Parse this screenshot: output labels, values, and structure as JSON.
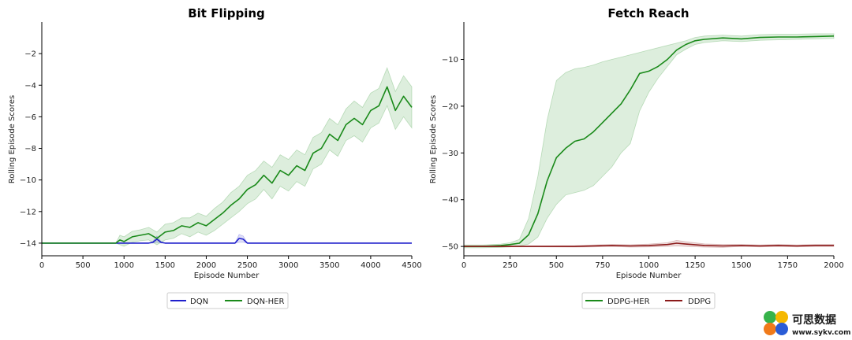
{
  "chart_data": [
    {
      "type": "line",
      "title": "Bit Flipping",
      "xlabel": "Episode Number",
      "ylabel": "Rolling Episode Scores",
      "xlim": [
        0,
        4500
      ],
      "ylim": [
        -14.8,
        0.0
      ],
      "xticks": [
        0,
        500,
        1000,
        1500,
        2000,
        2500,
        3000,
        3500,
        4000,
        4500
      ],
      "yticks": [
        -14,
        -12,
        -10,
        -8,
        -6,
        -4,
        -2
      ],
      "grid": false,
      "legend": "bottom-center",
      "series": [
        {
          "name": "DQN",
          "color": "#1f1fcc",
          "x": [
            0,
            900,
            1000,
            1300,
            1350,
            1400,
            1450,
            1500,
            2350,
            2400,
            2450,
            2500,
            4500
          ],
          "y": [
            -14,
            -14,
            -14,
            -14,
            -13.95,
            -13.75,
            -13.95,
            -14,
            -14,
            -13.7,
            -13.75,
            -14,
            -14
          ],
          "band": [
            0,
            0,
            0,
            0,
            0.05,
            0.2,
            0.05,
            0,
            0,
            0.25,
            0.2,
            0,
            0
          ]
        },
        {
          "name": "DQN-HER",
          "color": "#1a8a1a",
          "x": [
            0,
            900,
            950,
            1000,
            1100,
            1200,
            1300,
            1400,
            1500,
            1600,
            1700,
            1800,
            1900,
            2000,
            2100,
            2200,
            2300,
            2400,
            2500,
            2600,
            2700,
            2800,
            2900,
            3000,
            3100,
            3200,
            3300,
            3400,
            3500,
            3600,
            3700,
            3800,
            3900,
            4000,
            4100,
            4200,
            4300,
            4400,
            4500
          ],
          "y": [
            -14,
            -14,
            -13.8,
            -13.9,
            -13.6,
            -13.5,
            -13.4,
            -13.7,
            -13.3,
            -13.2,
            -12.9,
            -13.0,
            -12.7,
            -12.9,
            -12.5,
            -12.1,
            -11.6,
            -11.2,
            -10.6,
            -10.3,
            -9.7,
            -10.2,
            -9.4,
            -9.7,
            -9.1,
            -9.4,
            -8.3,
            -8.0,
            -7.1,
            -7.5,
            -6.5,
            -6.1,
            -6.5,
            -5.6,
            -5.3,
            -4.1,
            -5.6,
            -4.7,
            -5.4
          ],
          "band": [
            0,
            0,
            0.3,
            0.3,
            0.35,
            0.35,
            0.4,
            0.4,
            0.5,
            0.5,
            0.5,
            0.6,
            0.6,
            0.6,
            0.7,
            0.7,
            0.8,
            0.8,
            0.9,
            0.9,
            0.9,
            1.0,
            1.0,
            1.0,
            1.0,
            1.0,
            1.0,
            1.0,
            1.0,
            1.0,
            1.0,
            1.1,
            1.1,
            1.1,
            1.1,
            1.2,
            1.2,
            1.3,
            1.3
          ]
        }
      ]
    },
    {
      "type": "line",
      "title": "Fetch Reach",
      "xlabel": "Episode Number",
      "ylabel": "Rolling Episode Scores",
      "xlim": [
        0,
        2000
      ],
      "ylim": [
        -52,
        -2
      ],
      "xticks": [
        0,
        250,
        500,
        750,
        1000,
        1250,
        1500,
        1750,
        2000
      ],
      "yticks": [
        -50,
        -40,
        -30,
        -20,
        -10
      ],
      "grid": false,
      "legend": "bottom-center",
      "series": [
        {
          "name": "DDPG-HER",
          "color": "#1a8a1a",
          "x": [
            0,
            100,
            200,
            250,
            300,
            350,
            400,
            450,
            500,
            550,
            600,
            650,
            700,
            750,
            800,
            850,
            900,
            950,
            1000,
            1050,
            1100,
            1150,
            1200,
            1250,
            1300,
            1400,
            1500,
            1600,
            1700,
            1800,
            1900,
            2000
          ],
          "y": [
            -50,
            -50,
            -49.8,
            -49.6,
            -49.3,
            -47.5,
            -43,
            -36,
            -31,
            -29,
            -27.5,
            -27,
            -25.5,
            -23.5,
            -21.5,
            -19.5,
            -16.5,
            -13,
            -12.5,
            -11.5,
            -10,
            -8,
            -6.8,
            -6.0,
            -5.7,
            -5.4,
            -5.6,
            -5.3,
            -5.2,
            -5.2,
            -5.1,
            -5.0
          ],
          "band_lo": [
            -50.3,
            -50.3,
            -50.2,
            -50.1,
            -49.9,
            -49.5,
            -48,
            -44,
            -41,
            -39,
            -38.5,
            -38,
            -37,
            -35,
            -33,
            -30,
            -28,
            -21,
            -17,
            -14,
            -11.5,
            -9,
            -7.8,
            -6.8,
            -6.4,
            -6.0,
            -6.2,
            -5.9,
            -5.8,
            -5.7,
            -5.6,
            -5.5
          ],
          "band_hi": [
            -49.7,
            -49.7,
            -49.5,
            -49.2,
            -48.5,
            -44,
            -35,
            -23,
            -14.5,
            -12.8,
            -12,
            -11.7,
            -11.2,
            -10.5,
            -10,
            -9.5,
            -9,
            -8.5,
            -8,
            -7.5,
            -7,
            -6.5,
            -6,
            -5.3,
            -5.0,
            -4.8,
            -5.0,
            -4.7,
            -4.6,
            -4.6,
            -4.5,
            -4.5
          ]
        },
        {
          "name": "DDPG",
          "color": "#8b1a1a",
          "x": [
            0,
            200,
            400,
            600,
            700,
            800,
            900,
            1000,
            1100,
            1150,
            1200,
            1300,
            1400,
            1500,
            1600,
            1700,
            1800,
            1900,
            2000
          ],
          "y": [
            -50,
            -50,
            -50,
            -50,
            -49.9,
            -49.8,
            -49.9,
            -49.8,
            -49.6,
            -49.3,
            -49.5,
            -49.8,
            -49.9,
            -49.8,
            -49.9,
            -49.8,
            -49.9,
            -49.8,
            -49.8
          ],
          "band": [
            0.1,
            0.1,
            0.1,
            0.15,
            0.2,
            0.2,
            0.25,
            0.3,
            0.4,
            0.6,
            0.5,
            0.35,
            0.3,
            0.2,
            0.2,
            0.2,
            0.2,
            0.2,
            0.2
          ]
        }
      ]
    }
  ],
  "watermark": {
    "line1": "可思数据",
    "line2": "www.sykv.com",
    "colors": [
      "#e8232a",
      "#f5b800",
      "#2a5cd6",
      "#36b34a"
    ]
  }
}
